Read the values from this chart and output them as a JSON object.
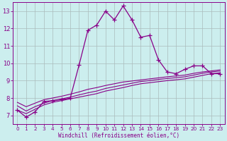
{
  "xlabel": "Windchill (Refroidissement éolien,°C)",
  "x_hours": [
    0,
    1,
    2,
    3,
    4,
    5,
    6,
    7,
    8,
    9,
    10,
    11,
    12,
    13,
    14,
    15,
    16,
    17,
    18,
    19,
    20,
    21,
    22,
    23
  ],
  "line_main": [
    7.3,
    6.9,
    7.2,
    7.8,
    7.85,
    7.9,
    8.0,
    9.9,
    11.9,
    12.2,
    13.0,
    12.5,
    13.3,
    12.5,
    11.5,
    11.6,
    10.2,
    9.5,
    9.4,
    9.65,
    9.85,
    9.85,
    9.4,
    9.4
  ],
  "line2": [
    7.3,
    7.1,
    7.35,
    7.6,
    7.75,
    7.85,
    7.95,
    8.05,
    8.15,
    8.25,
    8.4,
    8.5,
    8.6,
    8.72,
    8.82,
    8.88,
    8.94,
    9.0,
    9.05,
    9.1,
    9.2,
    9.3,
    9.4,
    9.45
  ],
  "line3": [
    7.55,
    7.25,
    7.5,
    7.7,
    7.85,
    7.95,
    8.05,
    8.18,
    8.3,
    8.4,
    8.55,
    8.65,
    8.75,
    8.85,
    8.95,
    9.0,
    9.07,
    9.12,
    9.17,
    9.22,
    9.32,
    9.42,
    9.5,
    9.55
  ],
  "line4": [
    7.75,
    7.5,
    7.7,
    7.9,
    8.0,
    8.1,
    8.22,
    8.35,
    8.5,
    8.6,
    8.72,
    8.82,
    8.92,
    8.98,
    9.04,
    9.1,
    9.16,
    9.22,
    9.27,
    9.32,
    9.42,
    9.5,
    9.56,
    9.62
  ],
  "line_color": "#880088",
  "bg_color": "#cceeee",
  "grid_color": "#aabbbb",
  "ylim": [
    6.5,
    13.5
  ],
  "xlim": [
    -0.5,
    23.5
  ],
  "yticks": [
    7,
    8,
    9,
    10,
    11,
    12,
    13
  ],
  "xticks": [
    0,
    1,
    2,
    3,
    4,
    5,
    6,
    7,
    8,
    9,
    10,
    11,
    12,
    13,
    14,
    15,
    16,
    17,
    18,
    19,
    20,
    21,
    22,
    23
  ]
}
